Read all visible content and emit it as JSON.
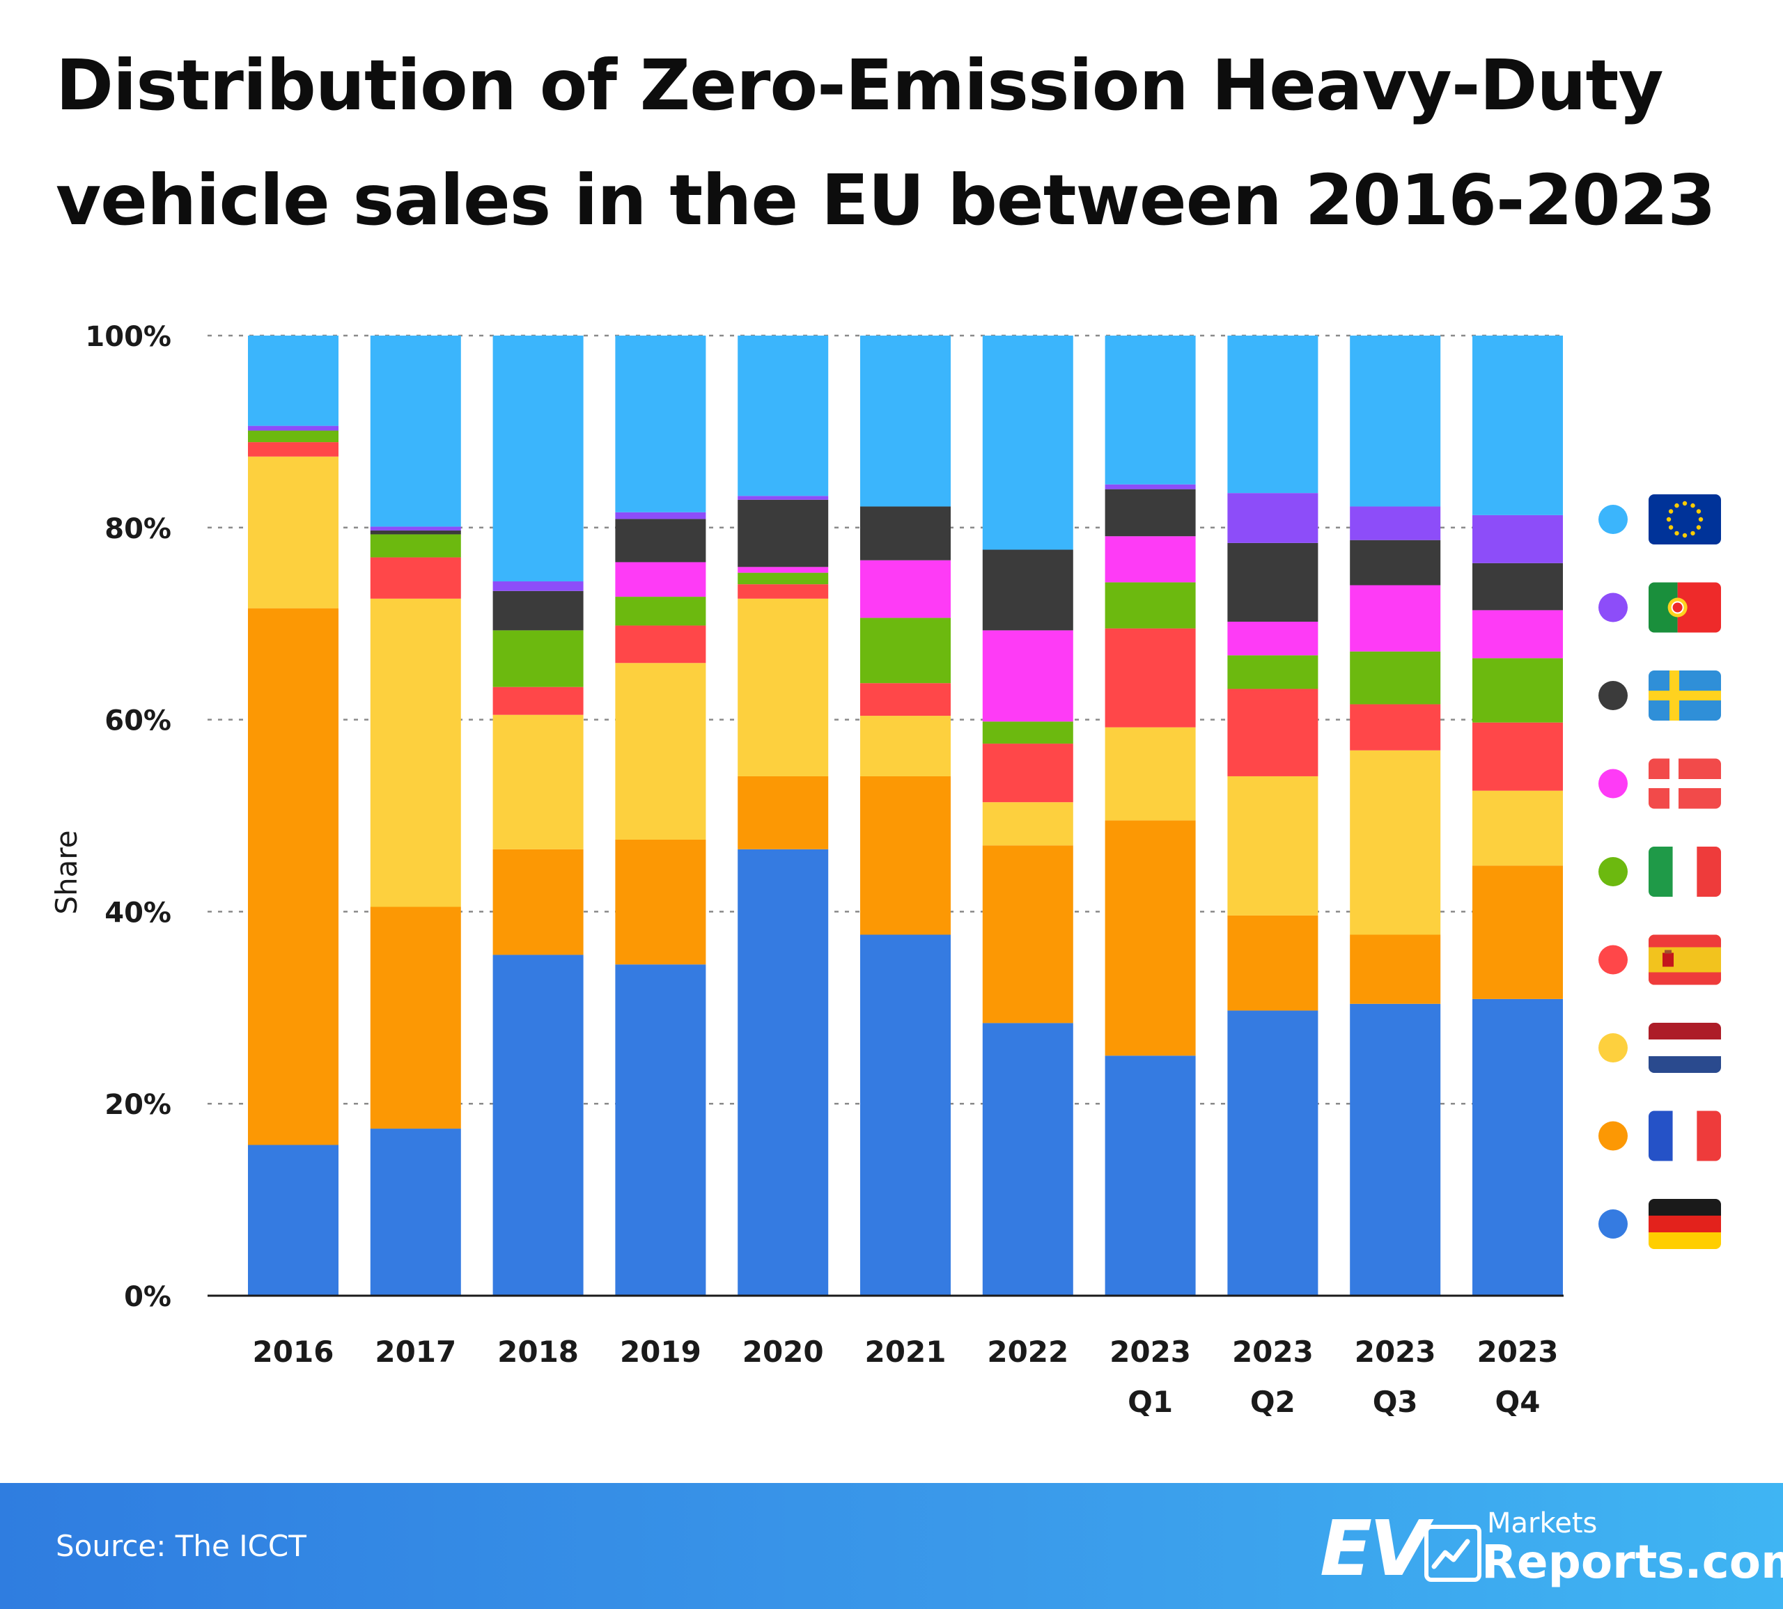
{
  "title": "Distribution of Zero-Emission Heavy-Duty vehicle sales in the EU between 2016-2023",
  "chart_data": {
    "type": "bar",
    "stacked": true,
    "ylabel": "Share",
    "xlabel": "",
    "ylim": [
      0,
      100
    ],
    "yticks": [
      "0%",
      "20%",
      "40%",
      "60%",
      "80%",
      "100%"
    ],
    "grid": true,
    "legend_position": "right",
    "categories": [
      "2016",
      "2017",
      "2018",
      "2019",
      "2020",
      "2021",
      "2022",
      "2023\nQ1",
      "2023\nQ2",
      "2023\nQ3",
      "2023\nQ4"
    ],
    "series": [
      {
        "flag": "germany-flag-icon",
        "color": "#357be1",
        "values": [
          15.7,
          17.4,
          35.5,
          34.5,
          46.5,
          37.6,
          28.4,
          25.0,
          29.7,
          30.4,
          30.9
        ]
      },
      {
        "flag": "france-flag-icon",
        "color": "#fc9804",
        "values": [
          55.9,
          23.1,
          11.0,
          13.0,
          7.6,
          16.5,
          18.5,
          24.5,
          9.9,
          7.2,
          13.9
        ]
      },
      {
        "flag": "netherlands-flag-icon",
        "color": "#fdd03e",
        "values": [
          15.8,
          32.1,
          14.0,
          18.4,
          18.5,
          6.3,
          4.5,
          9.7,
          14.5,
          19.2,
          7.8
        ]
      },
      {
        "flag": "spain-flag-icon",
        "color": "#ff4749",
        "values": [
          1.5,
          4.3,
          2.9,
          3.9,
          1.5,
          3.4,
          6.1,
          10.3,
          9.1,
          4.8,
          7.1
        ]
      },
      {
        "flag": "italy-flag-icon",
        "color": "#6cb90f",
        "values": [
          1.2,
          2.4,
          5.9,
          3.0,
          1.2,
          6.8,
          2.3,
          4.8,
          3.5,
          5.5,
          6.7
        ]
      },
      {
        "flag": "denmark-flag-icon",
        "color": "#fe3bf6",
        "values": [
          0.0,
          0.0,
          0.0,
          3.6,
          0.6,
          6.0,
          9.5,
          4.8,
          3.5,
          6.9,
          5.0
        ]
      },
      {
        "flag": "sweden-flag-icon",
        "color": "#3b3b3b",
        "values": [
          0.0,
          0.4,
          4.1,
          4.5,
          7.0,
          5.6,
          8.4,
          4.9,
          8.2,
          4.7,
          4.9
        ]
      },
      {
        "flag": "portugal-flag-icon",
        "color": "#8d4df9",
        "values": [
          0.5,
          0.4,
          1.0,
          0.7,
          0.4,
          0.0,
          0.0,
          0.5,
          5.2,
          3.5,
          5.0
        ]
      },
      {
        "flag": "eu-flag-icon",
        "color": "#3bb5fc",
        "values": [
          9.4,
          19.9,
          25.6,
          18.4,
          16.7,
          17.8,
          22.3,
          15.5,
          16.4,
          17.8,
          18.7
        ]
      }
    ]
  },
  "source_label": "Source: The ICCT",
  "logo": {
    "ev": "EV",
    "markets": "Markets",
    "reports": "Reports.com"
  }
}
